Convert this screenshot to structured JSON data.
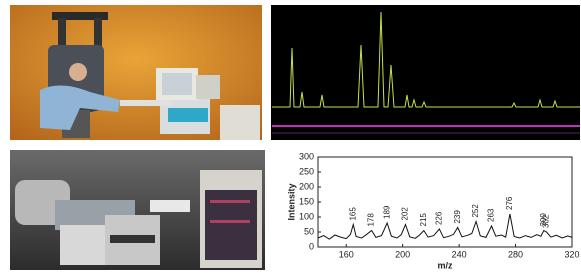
{
  "chart_data": {
    "type": "line",
    "x_label": "m/z",
    "y_label": "Intensity",
    "xlim": [
      140,
      320
    ],
    "xticks": [
      160,
      200,
      240,
      280,
      320
    ],
    "ylim": [
      0,
      300
    ],
    "yticks": [
      0,
      50,
      100,
      150,
      200,
      250,
      300
    ],
    "color": "#111111",
    "x": [
      140,
      144,
      148,
      152,
      156,
      160,
      163,
      165,
      167,
      171,
      175,
      178,
      181,
      185,
      189,
      192,
      196,
      199,
      202,
      205,
      209,
      212,
      215,
      218,
      222,
      226,
      229,
      233,
      236,
      239,
      242,
      246,
      249,
      252,
      255,
      259,
      263,
      266,
      270,
      273,
      276,
      279,
      283,
      287,
      291,
      295,
      298,
      300,
      302,
      305,
      309,
      313,
      317,
      320
    ],
    "values": [
      30,
      38,
      26,
      40,
      33,
      28,
      42,
      75,
      35,
      30,
      44,
      55,
      32,
      38,
      80,
      36,
      30,
      41,
      75,
      34,
      29,
      40,
      55,
      33,
      38,
      60,
      31,
      36,
      42,
      65,
      34,
      39,
      45,
      85,
      37,
      32,
      70,
      36,
      40,
      33,
      110,
      35,
      30,
      38,
      32,
      41,
      36,
      55,
      50,
      33,
      39,
      30,
      37,
      32
    ],
    "peaks": [
      165,
      178,
      189,
      202,
      215,
      226,
      239,
      252,
      263,
      276,
      300,
      302
    ]
  }
}
